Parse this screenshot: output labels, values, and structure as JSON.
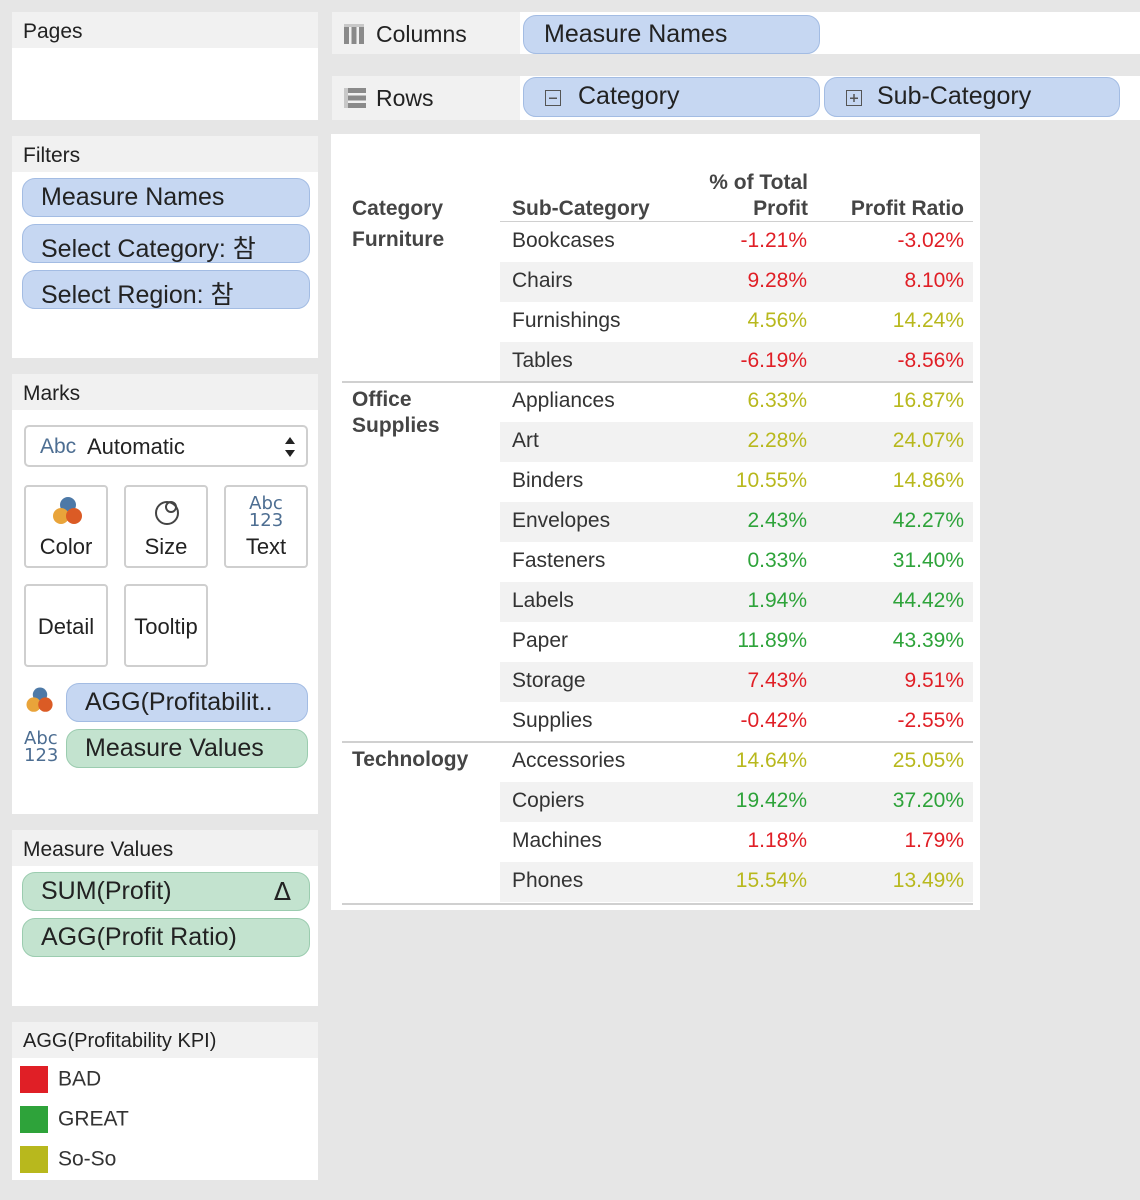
{
  "colors": {
    "bad": "#e01f26",
    "great": "#2ea33a",
    "soso": "#b8b81d"
  },
  "pages": {
    "title": "Pages"
  },
  "filters": {
    "title": "Filters",
    "items": [
      "Measure Names",
      "Select Category: 참",
      "Select Region: 참"
    ]
  },
  "marks": {
    "title": "Marks",
    "type_label": "Automatic",
    "type_icon_text": "Abc",
    "abc_text": "Abc",
    "num_text": "123",
    "buttons": {
      "color": "Color",
      "size": "Size",
      "text": "Text",
      "detail": "Detail",
      "tooltip": "Tooltip"
    },
    "color_pill": "AGG(Profitabilit..",
    "text_pill": "Measure Values"
  },
  "measure_values": {
    "title": "Measure Values",
    "items": [
      "SUM(Profit)",
      "AGG(Profit Ratio)"
    ],
    "delta_symbol": "Δ"
  },
  "legend": {
    "title": "AGG(Profitability KPI)",
    "items": [
      {
        "label": "BAD",
        "color": "#e01f26"
      },
      {
        "label": "GREAT",
        "color": "#2ea33a"
      },
      {
        "label": "So-So",
        "color": "#b8b81d"
      }
    ]
  },
  "shelves": {
    "columns_label": "Columns",
    "columns_pill": "Measure Names",
    "rows_label": "Rows",
    "rows_pills": [
      "Category",
      "Sub-Category"
    ]
  },
  "table": {
    "headers": {
      "category": "Category",
      "subcategory": "Sub-Category",
      "pct_line1": "% of Total",
      "pct_line2": "Profit",
      "ratio": "Profit Ratio"
    },
    "groups": [
      {
        "category_lines": [
          "Furniture"
        ],
        "rows": [
          {
            "sub": "Bookcases",
            "pct": "-1.21%",
            "ratio": "-3.02%",
            "kpi": "bad"
          },
          {
            "sub": "Chairs",
            "pct": "9.28%",
            "ratio": "8.10%",
            "kpi": "bad"
          },
          {
            "sub": "Furnishings",
            "pct": "4.56%",
            "ratio": "14.24%",
            "kpi": "soso"
          },
          {
            "sub": "Tables",
            "pct": "-6.19%",
            "ratio": "-8.56%",
            "kpi": "bad"
          }
        ]
      },
      {
        "category_lines": [
          "Office",
          "Supplies"
        ],
        "rows": [
          {
            "sub": "Appliances",
            "pct": "6.33%",
            "ratio": "16.87%",
            "kpi": "soso"
          },
          {
            "sub": "Art",
            "pct": "2.28%",
            "ratio": "24.07%",
            "kpi": "soso"
          },
          {
            "sub": "Binders",
            "pct": "10.55%",
            "ratio": "14.86%",
            "kpi": "soso"
          },
          {
            "sub": "Envelopes",
            "pct": "2.43%",
            "ratio": "42.27%",
            "kpi": "great"
          },
          {
            "sub": "Fasteners",
            "pct": "0.33%",
            "ratio": "31.40%",
            "kpi": "great"
          },
          {
            "sub": "Labels",
            "pct": "1.94%",
            "ratio": "44.42%",
            "kpi": "great"
          },
          {
            "sub": "Paper",
            "pct": "11.89%",
            "ratio": "43.39%",
            "kpi": "great"
          },
          {
            "sub": "Storage",
            "pct": "7.43%",
            "ratio": "9.51%",
            "kpi": "bad"
          },
          {
            "sub": "Supplies",
            "pct": "-0.42%",
            "ratio": "-2.55%",
            "kpi": "bad"
          }
        ]
      },
      {
        "category_lines": [
          "Technology"
        ],
        "rows": [
          {
            "sub": "Accessories",
            "pct": "14.64%",
            "ratio": "25.05%",
            "kpi": "soso"
          },
          {
            "sub": "Copiers",
            "pct": "19.42%",
            "ratio": "37.20%",
            "kpi": "great"
          },
          {
            "sub": "Machines",
            "pct": "1.18%",
            "ratio": "1.79%",
            "kpi": "bad"
          },
          {
            "sub": "Phones",
            "pct": "15.54%",
            "ratio": "13.49%",
            "kpi": "soso"
          }
        ]
      }
    ]
  }
}
